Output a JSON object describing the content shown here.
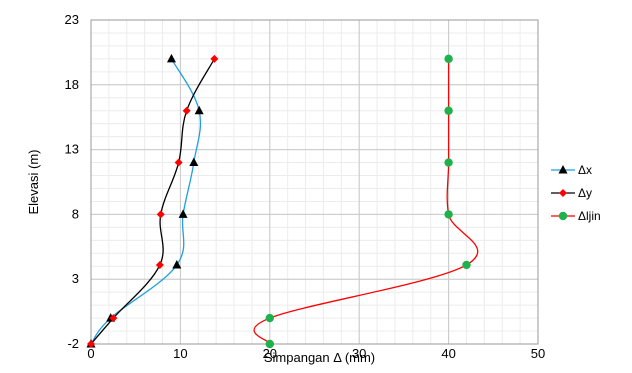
{
  "chart_data": {
    "type": "line",
    "title": "",
    "xlabel": "Simpangan Δ (mm)",
    "ylabel": "Elevasi (m)",
    "xlim": [
      0,
      50
    ],
    "ylim": [
      -2,
      23
    ],
    "xticks": [
      0,
      10,
      20,
      30,
      40,
      50
    ],
    "yticks": [
      -2,
      3,
      8,
      13,
      18,
      23
    ],
    "minor_grid": true,
    "legend_position": "right",
    "series": [
      {
        "name": "Δx",
        "color": "#1f9fdf",
        "marker": "triangle",
        "marker_color": "#000000",
        "points": [
          [
            0,
            -2
          ],
          [
            2.2,
            0
          ],
          [
            9.6,
            4.1
          ],
          [
            10.3,
            8.0
          ],
          [
            11.5,
            12.0
          ],
          [
            12.1,
            16.0
          ],
          [
            9.0,
            20.0
          ]
        ]
      },
      {
        "name": "Δy",
        "color": "#000000",
        "marker": "diamond",
        "marker_color": "#ff0000",
        "points": [
          [
            0,
            -2
          ],
          [
            2.5,
            0
          ],
          [
            7.7,
            4.1
          ],
          [
            7.8,
            8.0
          ],
          [
            9.8,
            12.0
          ],
          [
            10.7,
            16.0
          ],
          [
            13.8,
            20.0
          ]
        ]
      },
      {
        "name": "Δljin",
        "color": "#ff0000",
        "marker": "circle",
        "marker_color": "#1db24b",
        "points": [
          [
            20,
            -2
          ],
          [
            20,
            0
          ],
          [
            42,
            4.1
          ],
          [
            40,
            8.0
          ],
          [
            40,
            12.0
          ],
          [
            40,
            16.0
          ],
          [
            40,
            20.0
          ]
        ]
      }
    ]
  }
}
